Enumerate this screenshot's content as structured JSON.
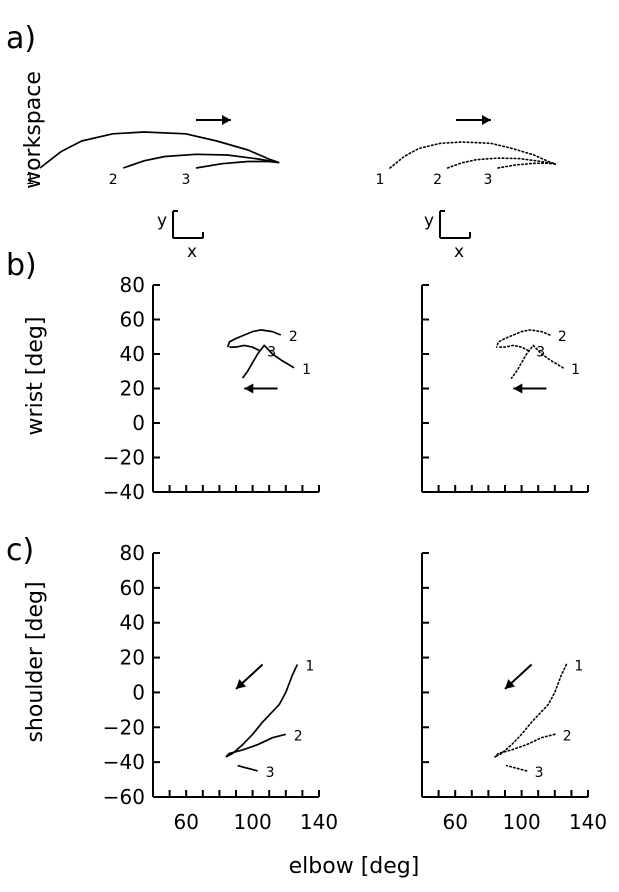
{
  "panels": {
    "a": "a)",
    "b": "b)",
    "c": "c)"
  },
  "axis_text": {
    "workspace": "workspace",
    "wrist": "wrist [deg]",
    "shoulder": "shoulder [deg]",
    "elbow": "elbow [deg]",
    "x_letter": "x",
    "y_letter": "y"
  },
  "chart_data": [
    {
      "type": "line",
      "panel": "a",
      "title": "",
      "ylabel": "workspace",
      "style_left": "solid",
      "style_right": "dotted",
      "arrow_direction": "right",
      "coordinate_frame": [
        "x",
        "y"
      ],
      "series": [
        {
          "name": "1",
          "x": [
            0,
            2,
            4,
            7,
            10,
            14,
            17,
            20,
            22,
            23
          ],
          "y": [
            0,
            4.5,
            7.5,
            9.5,
            10,
            9.5,
            7.5,
            5,
            2.5,
            1.5
          ]
        },
        {
          "name": "2",
          "x": [
            8,
            10,
            12,
            15,
            18,
            21,
            23
          ],
          "y": [
            0,
            2,
            3.2,
            3.8,
            3.6,
            2.5,
            1.5
          ]
        },
        {
          "name": "3",
          "x": [
            15,
            17.5,
            20,
            22,
            23
          ],
          "y": [
            0,
            1.2,
            1.8,
            1.8,
            1.5
          ]
        }
      ]
    },
    {
      "type": "line",
      "panel": "b",
      "title": "",
      "xlabel": "",
      "ylabel": "wrist [deg]",
      "xlim": [
        40,
        140
      ],
      "ylim": [
        -40,
        80
      ],
      "yticks": [
        -40,
        -20,
        0,
        20,
        40,
        60,
        80
      ],
      "xticks_minor_step": 10,
      "style_left": "solid",
      "style_right": "dotted",
      "arrow_direction": "left",
      "series": [
        {
          "name": "1",
          "x": [
            125,
            118,
            112,
            107,
            103,
            100,
            97,
            94
          ],
          "y": [
            32,
            36,
            40,
            45,
            40,
            35,
            30,
            26
          ]
        },
        {
          "name": "2",
          "x": [
            117,
            112,
            105,
            100,
            95,
            90,
            86,
            85
          ],
          "y": [
            51,
            53,
            54,
            53,
            51,
            49,
            47,
            44
          ]
        },
        {
          "name": "3",
          "x": [
            104,
            100,
            95,
            90,
            86
          ],
          "y": [
            42,
            44,
            45,
            44,
            44
          ]
        }
      ]
    },
    {
      "type": "line",
      "panel": "c",
      "title": "",
      "xlabel": "elbow [deg]",
      "ylabel": "shoulder [deg]",
      "xlim": [
        40,
        140
      ],
      "ylim": [
        -60,
        80
      ],
      "yticks": [
        -60,
        -40,
        -20,
        0,
        20,
        40,
        60,
        80
      ],
      "xticks": [
        60,
        100,
        140
      ],
      "xticks_minor_step": 10,
      "style_left": "solid",
      "style_right": "dotted",
      "arrow_direction": "down-left",
      "series": [
        {
          "name": "1",
          "x": [
            127,
            124,
            120,
            116,
            111,
            106,
            100,
            94,
            88,
            84
          ],
          "y": [
            16,
            10,
            0,
            -7,
            -12,
            -17,
            -24,
            -30,
            -35,
            -37
          ]
        },
        {
          "name": "2",
          "x": [
            120,
            112,
            103,
            94,
            86,
            84
          ],
          "y": [
            -24,
            -26,
            -30,
            -33,
            -35,
            -37
          ]
        },
        {
          "name": "3",
          "x": [
            103,
            99,
            95,
            91
          ],
          "y": [
            -45,
            -44,
            -43,
            -42
          ]
        }
      ]
    }
  ]
}
